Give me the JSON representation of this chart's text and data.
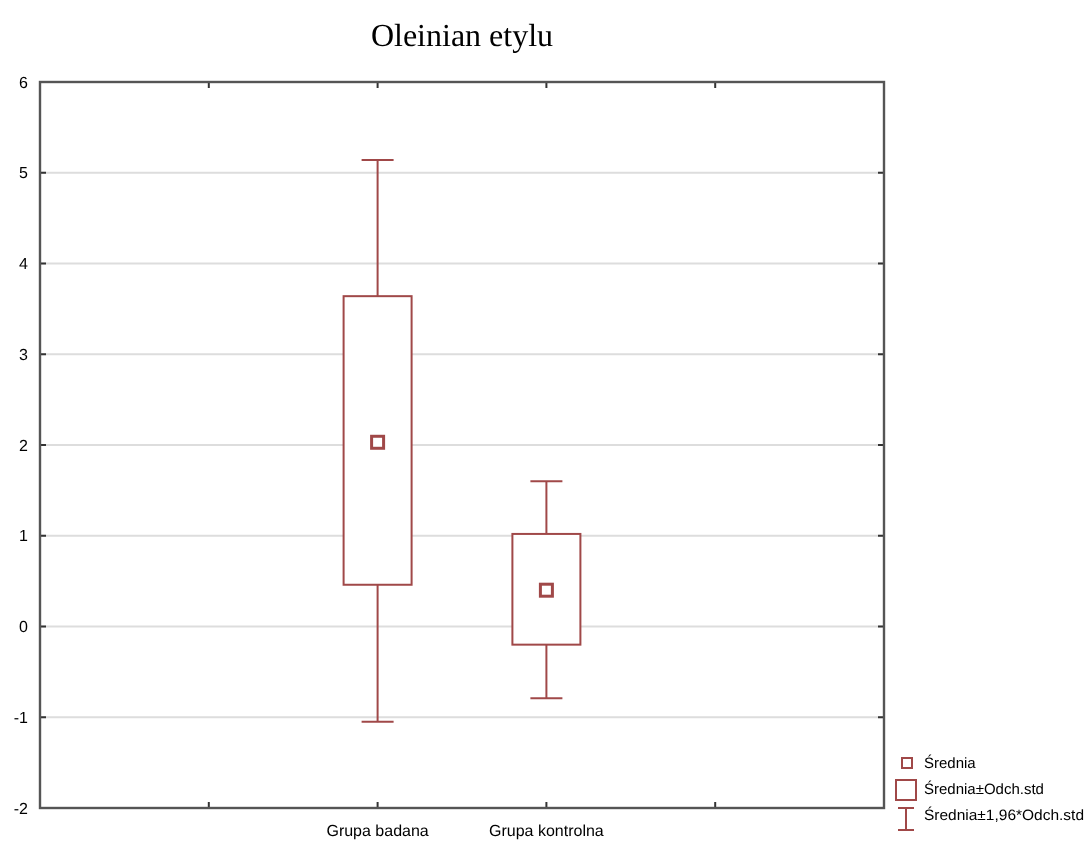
{
  "chart_data": {
    "type": "box",
    "title": "Oleinian etylu",
    "categories": [
      "Grupa badana",
      "Grupa kontrolna"
    ],
    "boxes": [
      {
        "low": -1.05,
        "q1": 0.46,
        "median": 2.03,
        "q3": 3.64,
        "high": 5.14
      },
      {
        "low": -0.79,
        "q1": -0.2,
        "median": 0.4,
        "q3": 1.02,
        "high": 1.6
      }
    ],
    "color": "#a04848",
    "ylim": [
      -2,
      6
    ],
    "yticks": [
      -2,
      -1,
      0,
      1,
      2,
      3,
      4,
      5,
      6
    ],
    "grid": "y",
    "annotations": [
      "Średnia",
      "Średnia±Odch.std",
      "Średnia±1,96*Odch.std"
    ]
  }
}
